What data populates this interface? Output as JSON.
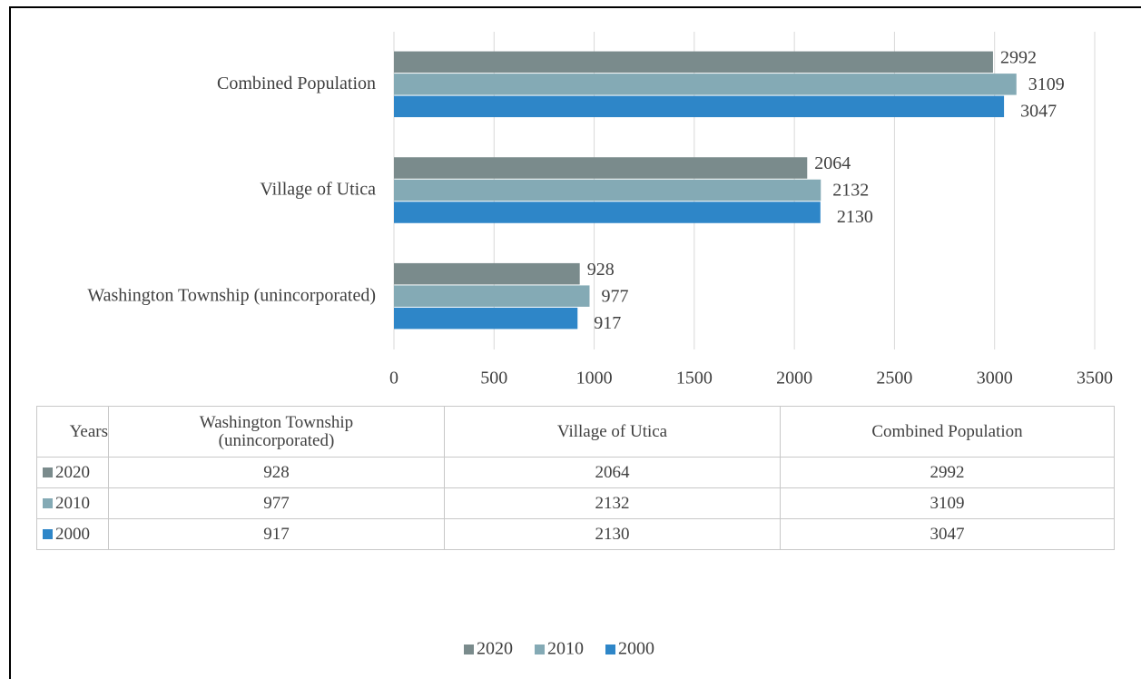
{
  "chart_data": {
    "type": "barh",
    "categories": [
      "Washington Township (unincorporated)",
      "Village of Utica",
      "Combined Population"
    ],
    "series": [
      {
        "name": "2020",
        "color": "#7a8b8c",
        "values": [
          928,
          2064,
          2992
        ]
      },
      {
        "name": "2010",
        "color": "#84aab5",
        "values": [
          977,
          2132,
          3109
        ]
      },
      {
        "name": "2000",
        "color": "#2e86c8",
        "values": [
          917,
          2130,
          3047
        ]
      }
    ],
    "xlim": [
      0,
      3500
    ],
    "xticks": [
      0,
      500,
      1000,
      1500,
      2000,
      2500,
      3000,
      3500
    ],
    "grid": true,
    "legend": "bottom",
    "table_header": "Years"
  }
}
